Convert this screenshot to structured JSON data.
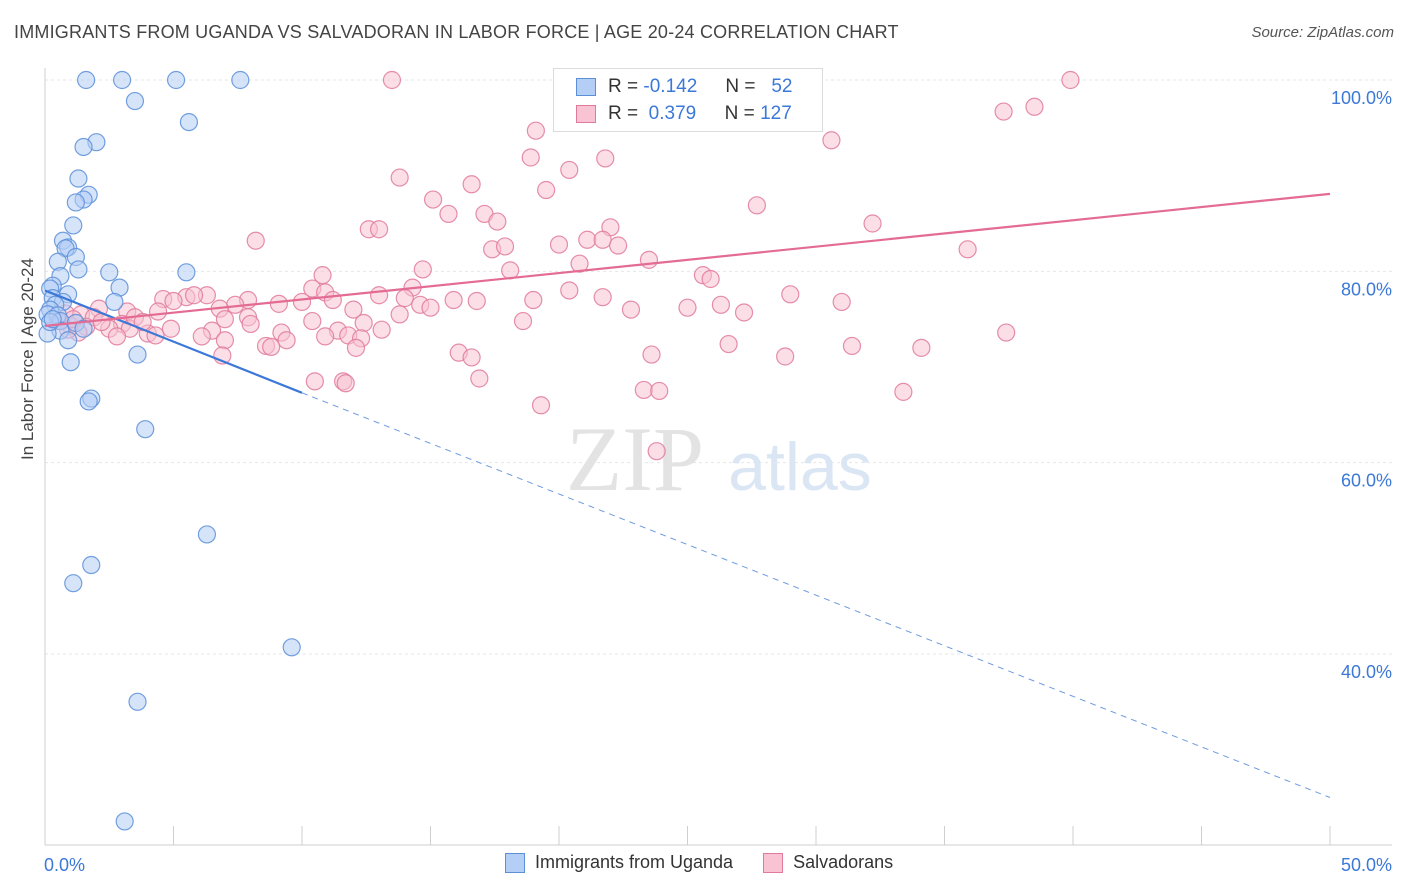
{
  "title": "IMMIGRANTS FROM UGANDA VS SALVADORAN IN LABOR FORCE | AGE 20-24 CORRELATION CHART",
  "source": "Source: ZipAtlas.com",
  "legend": {
    "r_label": "R =",
    "n_label": "N =",
    "rows": [
      {
        "name": "Immigrants from Uganda",
        "r": "-0.142",
        "n": "52",
        "fill": "#b4cef5",
        "stroke": "#5b8fd8"
      },
      {
        "name": "Salvadorans",
        "r": "0.379",
        "n": "127",
        "fill": "#f8c3d2",
        "stroke": "#e07a9c"
      }
    ]
  },
  "chart_data": {
    "type": "scatter",
    "title": "IMMIGRANTS FROM UGANDA VS SALVADORAN IN LABOR FORCE | AGE 20-24 CORRELATION CHART",
    "xlabel": "",
    "ylabel": "In Labor Force | Age 20-24",
    "xlim": [
      0,
      50
    ],
    "ylim": [
      22,
      102
    ],
    "x_tick_labels": [
      "0.0%",
      "50.0%"
    ],
    "y_ticks": [
      40,
      60,
      80,
      100
    ],
    "y_tick_labels": [
      "40.0%",
      "60.0%",
      "80.0%",
      "100.0%"
    ],
    "grid": true,
    "legend_position": "top-center",
    "watermark": "ZIPatlas",
    "series": [
      {
        "name": "Immigrants from Uganda",
        "color": "#5b8fd8",
        "fill": "#b4cef5",
        "trend": {
          "x0": 0,
          "y0": 78.0,
          "x1": 10,
          "y1": 67.3,
          "dash_to_x": 50,
          "dash_to_y": 25.0
        },
        "points": [
          [
            1.6,
            100
          ],
          [
            3.0,
            100
          ],
          [
            5.1,
            100
          ],
          [
            7.6,
            100
          ],
          [
            3.5,
            97.8
          ],
          [
            5.6,
            95.6
          ],
          [
            2.0,
            93.5
          ],
          [
            1.5,
            93.0
          ],
          [
            1.3,
            89.7
          ],
          [
            1.7,
            88.0
          ],
          [
            1.5,
            87.5
          ],
          [
            1.2,
            87.2
          ],
          [
            1.1,
            84.8
          ],
          [
            0.7,
            83.2
          ],
          [
            0.9,
            82.5
          ],
          [
            0.8,
            82.4
          ],
          [
            1.2,
            81.5
          ],
          [
            0.5,
            81.0
          ],
          [
            1.3,
            80.2
          ],
          [
            2.5,
            79.9
          ],
          [
            5.5,
            79.9
          ],
          [
            0.6,
            79.5
          ],
          [
            0.3,
            78.5
          ],
          [
            0.2,
            78.2
          ],
          [
            2.9,
            78.3
          ],
          [
            0.9,
            77.6
          ],
          [
            0.3,
            77.2
          ],
          [
            0.7,
            76.8
          ],
          [
            0.4,
            76.5
          ],
          [
            2.7,
            76.8
          ],
          [
            0.2,
            76.0
          ],
          [
            0.1,
            75.5
          ],
          [
            0.5,
            75.4
          ],
          [
            0.6,
            74.8
          ],
          [
            1.2,
            74.6
          ],
          [
            0.6,
            73.8
          ],
          [
            1.5,
            74.0
          ],
          [
            0.1,
            73.5
          ],
          [
            0.9,
            72.8
          ],
          [
            3.6,
            71.3
          ],
          [
            1.0,
            70.5
          ],
          [
            1.8,
            66.7
          ],
          [
            1.7,
            66.4
          ],
          [
            3.9,
            63.5
          ],
          [
            6.3,
            52.5
          ],
          [
            1.8,
            49.3
          ],
          [
            1.1,
            47.4
          ],
          [
            9.6,
            40.7
          ],
          [
            3.6,
            35.0
          ],
          [
            3.1,
            22.5
          ],
          [
            0.2,
            74.7
          ],
          [
            0.3,
            75.0
          ]
        ]
      },
      {
        "name": "Salvadorans",
        "color": "#e07a9c",
        "fill": "#f8c3d2",
        "trend": {
          "x0": 0,
          "y0": 74.3,
          "x1": 50,
          "y1": 88.1
        },
        "points": [
          [
            13.5,
            100
          ],
          [
            39.9,
            100
          ],
          [
            28.9,
            97.4
          ],
          [
            38.5,
            97.2
          ],
          [
            37.3,
            96.7
          ],
          [
            19.1,
            94.7
          ],
          [
            30.6,
            93.7
          ],
          [
            18.9,
            91.9
          ],
          [
            21.8,
            91.8
          ],
          [
            20.4,
            90.6
          ],
          [
            13.8,
            89.8
          ],
          [
            16.6,
            89.1
          ],
          [
            19.5,
            88.5
          ],
          [
            15.1,
            87.5
          ],
          [
            27.7,
            86.9
          ],
          [
            15.7,
            86.0
          ],
          [
            17.1,
            86.0
          ],
          [
            17.6,
            85.2
          ],
          [
            32.2,
            85.0
          ],
          [
            12.6,
            84.4
          ],
          [
            13.0,
            84.4
          ],
          [
            22.0,
            84.6
          ],
          [
            21.1,
            83.3
          ],
          [
            8.2,
            83.2
          ],
          [
            21.7,
            83.3
          ],
          [
            20.0,
            82.8
          ],
          [
            22.3,
            82.7
          ],
          [
            17.4,
            82.3
          ],
          [
            17.9,
            82.6
          ],
          [
            35.9,
            82.3
          ],
          [
            23.5,
            81.2
          ],
          [
            20.8,
            80.8
          ],
          [
            14.7,
            80.2
          ],
          [
            18.1,
            80.1
          ],
          [
            25.6,
            79.6
          ],
          [
            10.8,
            79.6
          ],
          [
            25.9,
            79.2
          ],
          [
            10.4,
            78.2
          ],
          [
            14.3,
            78.3
          ],
          [
            20.4,
            78.0
          ],
          [
            10.9,
            77.8
          ],
          [
            6.3,
            77.5
          ],
          [
            13.0,
            77.5
          ],
          [
            5.5,
            77.3
          ],
          [
            14.0,
            77.2
          ],
          [
            4.6,
            77.1
          ],
          [
            7.9,
            77.0
          ],
          [
            11.2,
            77.0
          ],
          [
            21.7,
            77.3
          ],
          [
            15.9,
            77.0
          ],
          [
            16.8,
            76.9
          ],
          [
            5.0,
            76.9
          ],
          [
            7.4,
            76.5
          ],
          [
            9.1,
            76.6
          ],
          [
            10.0,
            76.8
          ],
          [
            14.6,
            76.5
          ],
          [
            26.3,
            76.5
          ],
          [
            31.0,
            76.8
          ],
          [
            6.8,
            76.1
          ],
          [
            2.1,
            76.1
          ],
          [
            3.2,
            75.8
          ],
          [
            4.4,
            75.8
          ],
          [
            0.8,
            75.6
          ],
          [
            1.4,
            75.5
          ],
          [
            1.9,
            75.2
          ],
          [
            7.0,
            75.0
          ],
          [
            13.8,
            75.5
          ],
          [
            27.2,
            75.7
          ],
          [
            7.9,
            75.2
          ],
          [
            10.4,
            74.8
          ],
          [
            12.4,
            74.6
          ],
          [
            3.0,
            74.5
          ],
          [
            18.6,
            74.8
          ],
          [
            1.0,
            74.3
          ],
          [
            1.6,
            74.2
          ],
          [
            2.5,
            74.0
          ],
          [
            3.3,
            74.0
          ],
          [
            6.5,
            73.8
          ],
          [
            9.2,
            73.6
          ],
          [
            11.4,
            73.8
          ],
          [
            13.1,
            73.9
          ],
          [
            1.3,
            73.6
          ],
          [
            2.8,
            73.2
          ],
          [
            4.0,
            73.5
          ],
          [
            4.3,
            73.3
          ],
          [
            6.1,
            73.2
          ],
          [
            7.0,
            72.8
          ],
          [
            9.4,
            72.8
          ],
          [
            10.9,
            73.2
          ],
          [
            11.8,
            73.3
          ],
          [
            12.3,
            73.0
          ],
          [
            37.4,
            73.6
          ],
          [
            8.6,
            72.2
          ],
          [
            8.8,
            72.1
          ],
          [
            12.1,
            72.0
          ],
          [
            26.6,
            72.4
          ],
          [
            31.4,
            72.2
          ],
          [
            34.1,
            72.0
          ],
          [
            16.1,
            71.5
          ],
          [
            16.6,
            71.0
          ],
          [
            6.9,
            71.2
          ],
          [
            23.6,
            71.3
          ],
          [
            28.8,
            71.1
          ],
          [
            10.5,
            68.5
          ],
          [
            11.6,
            68.5
          ],
          [
            16.9,
            68.8
          ],
          [
            11.7,
            68.3
          ],
          [
            23.3,
            67.6
          ],
          [
            23.9,
            67.5
          ],
          [
            33.4,
            67.4
          ],
          [
            19.3,
            66.0
          ],
          [
            23.8,
            61.2
          ],
          [
            0.5,
            74.8
          ],
          [
            0.9,
            73.9
          ],
          [
            1.1,
            75.0
          ],
          [
            2.2,
            74.7
          ],
          [
            3.5,
            75.2
          ],
          [
            4.9,
            74.0
          ],
          [
            8.0,
            74.5
          ],
          [
            12.0,
            76.0
          ],
          [
            15.0,
            76.2
          ],
          [
            19.0,
            77.0
          ],
          [
            22.8,
            76.0
          ],
          [
            25.0,
            76.2
          ],
          [
            5.8,
            77.5
          ],
          [
            29.0,
            77.6
          ],
          [
            3.8,
            74.7
          ]
        ]
      }
    ]
  }
}
